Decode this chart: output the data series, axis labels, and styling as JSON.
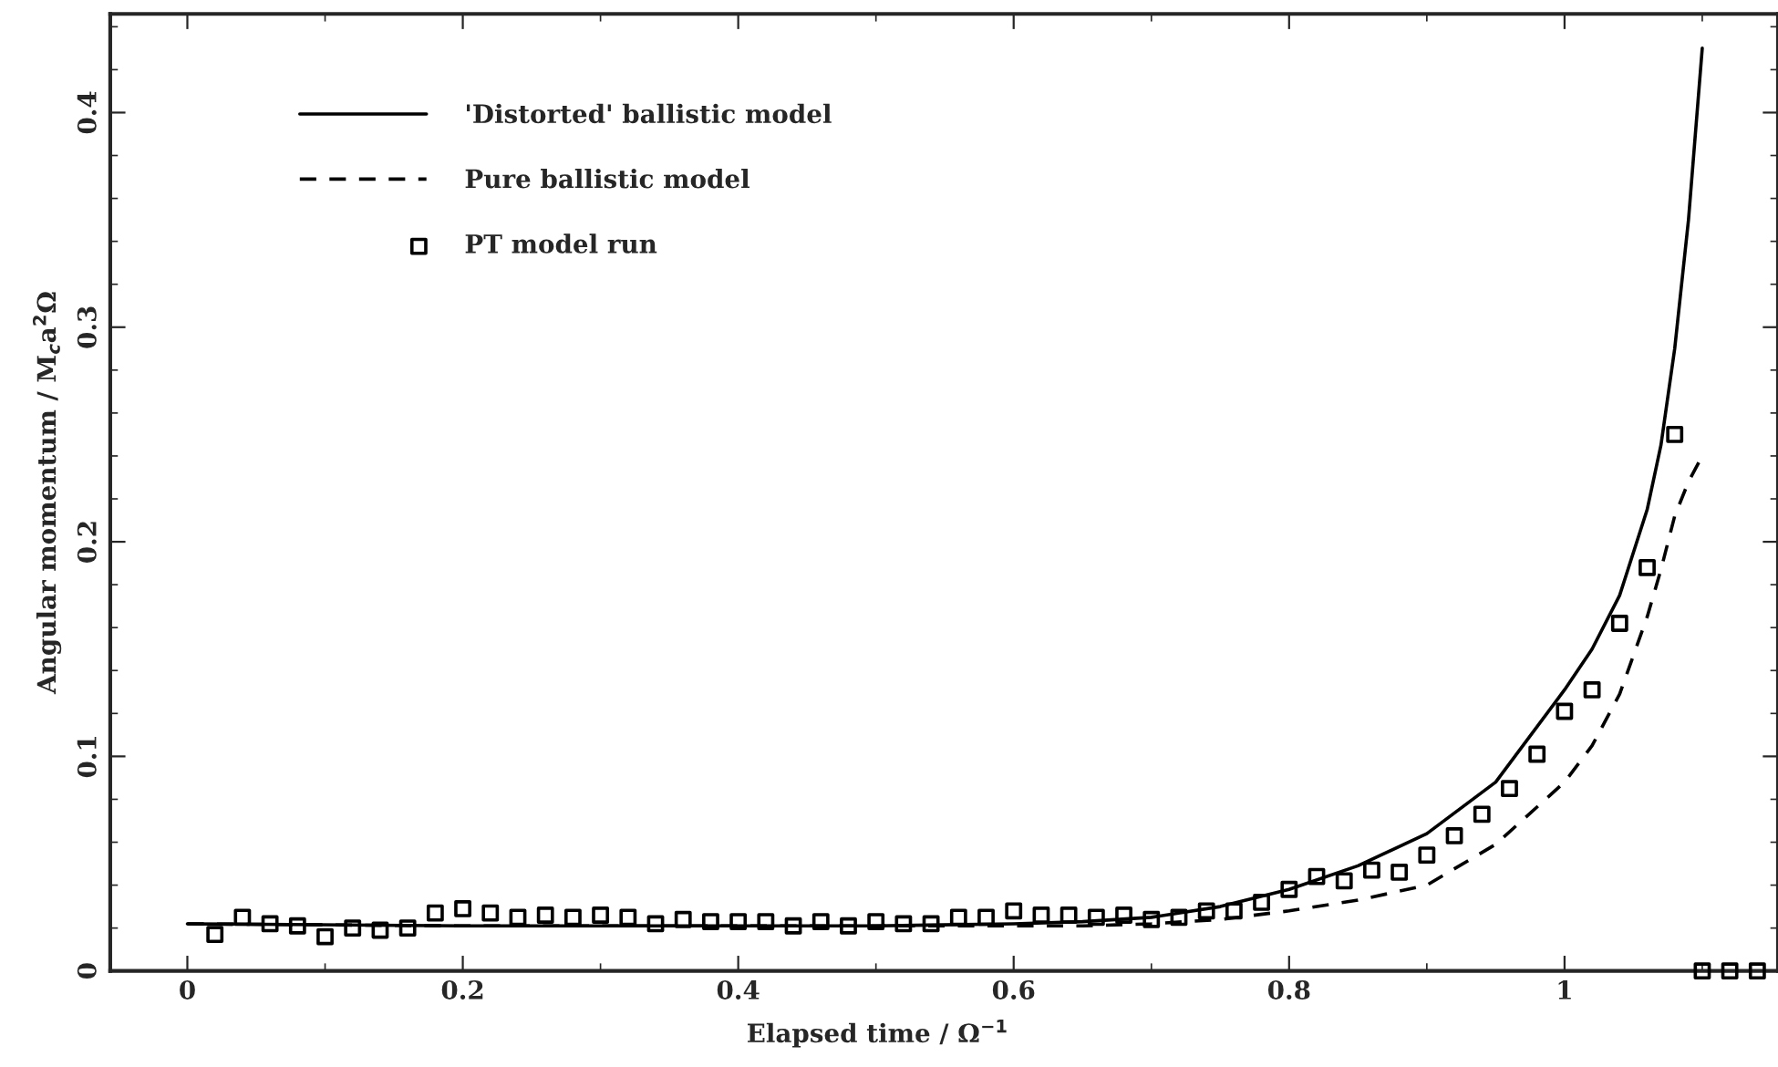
{
  "chart_data": {
    "type": "line",
    "xlabel": "Elapsed time / Ω$^{−1}$",
    "ylabel": "Angular momentum / M$_{c}$a$^{2}$Ω",
    "xlim": [
      -0.056,
      1.155
    ],
    "ylim": [
      0,
      0.446
    ],
    "xticks": [
      0,
      0.2,
      0.4,
      0.6,
      0.8,
      1
    ],
    "yticks": [
      0,
      0.1,
      0.2,
      0.3,
      0.4
    ],
    "grid": false,
    "legend": "top left",
    "series": [
      {
        "name": "'Distorted' ballistic model",
        "type": "line",
        "line_style": "solid",
        "marker": "none",
        "color": "#000000",
        "x": [
          0,
          0.2,
          0.4,
          0.5,
          0.6,
          0.65,
          0.7,
          0.75,
          0.8,
          0.85,
          0.9,
          0.95,
          1.0,
          1.02,
          1.04,
          1.06,
          1.07,
          1.08,
          1.09,
          1.1
        ],
        "values": [
          0.022,
          0.021,
          0.021,
          0.021,
          0.022,
          0.023,
          0.025,
          0.03,
          0.038,
          0.049,
          0.064,
          0.088,
          0.131,
          0.15,
          0.175,
          0.215,
          0.245,
          0.29,
          0.35,
          0.43
        ]
      },
      {
        "name": "Pure ballistic model",
        "type": "line",
        "line_style": "dashed",
        "marker": "none",
        "color": "#000000",
        "x": [
          0,
          0.2,
          0.4,
          0.5,
          0.6,
          0.65,
          0.7,
          0.75,
          0.8,
          0.85,
          0.9,
          0.95,
          1.0,
          1.02,
          1.04,
          1.06,
          1.07,
          1.08,
          1.09,
          1.1
        ],
        "values": [
          0.022,
          0.021,
          0.021,
          0.021,
          0.021,
          0.021,
          0.022,
          0.024,
          0.028,
          0.033,
          0.04,
          0.059,
          0.088,
          0.105,
          0.129,
          0.165,
          0.187,
          0.212,
          0.228,
          0.24
        ]
      },
      {
        "name": "PT model run",
        "type": "scatter",
        "marker": "square",
        "color": "#000000",
        "x": [
          0.02,
          0.04,
          0.06,
          0.08,
          0.1,
          0.12,
          0.14,
          0.16,
          0.18,
          0.2,
          0.22,
          0.24,
          0.26,
          0.28,
          0.3,
          0.32,
          0.34,
          0.36,
          0.38,
          0.4,
          0.42,
          0.44,
          0.46,
          0.48,
          0.5,
          0.52,
          0.54,
          0.56,
          0.58,
          0.6,
          0.62,
          0.64,
          0.66,
          0.68,
          0.7,
          0.72,
          0.74,
          0.76,
          0.78,
          0.8,
          0.82,
          0.84,
          0.86,
          0.88,
          0.9,
          0.92,
          0.94,
          0.96,
          0.98,
          1.0,
          1.02,
          1.04,
          1.06,
          1.08,
          1.1,
          1.12,
          1.14
        ],
        "values": [
          0.017,
          0.025,
          0.022,
          0.021,
          0.016,
          0.02,
          0.019,
          0.02,
          0.027,
          0.029,
          0.027,
          0.025,
          0.026,
          0.025,
          0.026,
          0.025,
          0.022,
          0.024,
          0.023,
          0.023,
          0.023,
          0.021,
          0.023,
          0.021,
          0.023,
          0.022,
          0.022,
          0.025,
          0.025,
          0.028,
          0.026,
          0.026,
          0.025,
          0.026,
          0.024,
          0.025,
          0.028,
          0.028,
          0.032,
          0.038,
          0.044,
          0.042,
          0.047,
          0.046,
          0.054,
          0.063,
          0.073,
          0.085,
          0.101,
          0.121,
          0.131,
          0.162,
          0.188,
          0.25,
          0,
          0,
          0
        ]
      }
    ]
  }
}
